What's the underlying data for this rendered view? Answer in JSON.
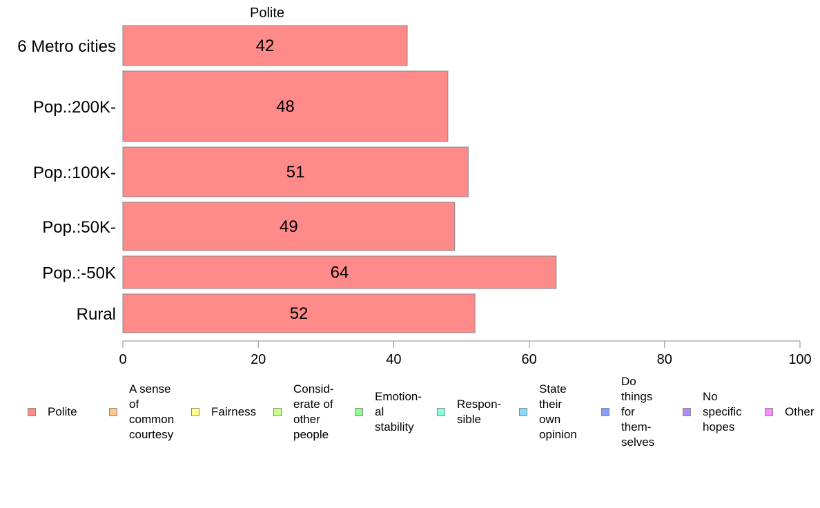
{
  "chart_data": {
    "type": "bar",
    "orientation": "horizontal",
    "series_title": "Polite",
    "categories": [
      "6 Metro cities",
      "Pop.:200K-",
      "Pop.:100K-",
      "Pop.:50K-",
      "Pop.:-50K",
      "Rural"
    ],
    "values": [
      42,
      48,
      51,
      49,
      64,
      52
    ],
    "xlim": [
      0,
      100
    ],
    "x_ticks": [
      0,
      20,
      40,
      60,
      80,
      100
    ],
    "bar_color": "#ff8a8a",
    "bar_border": "#888888",
    "grid": false,
    "legend_position": "bottom",
    "legend": [
      {
        "label": "Polite",
        "color": "#ff8a8a"
      },
      {
        "label": "A sense\nof\ncommon\ncourtesy",
        "color": "#ffc58a"
      },
      {
        "label": "Fairness",
        "color": "#ffff8a"
      },
      {
        "label": "Consid-\nerate of\nother\npeople",
        "color": "#c5ff8a"
      },
      {
        "label": "Emotion-\nal\nstability",
        "color": "#8aff8a"
      },
      {
        "label": "Respon-\nsible",
        "color": "#8affe0"
      },
      {
        "label": "State\ntheir\nown\nopinion",
        "color": "#8adcff"
      },
      {
        "label": "Do\nthings\nfor\nthem-\nselves",
        "color": "#8aa0ff"
      },
      {
        "label": "No\nspecific\nhopes",
        "color": "#b08aff"
      },
      {
        "label": "Other",
        "color": "#ff8aff"
      }
    ]
  }
}
